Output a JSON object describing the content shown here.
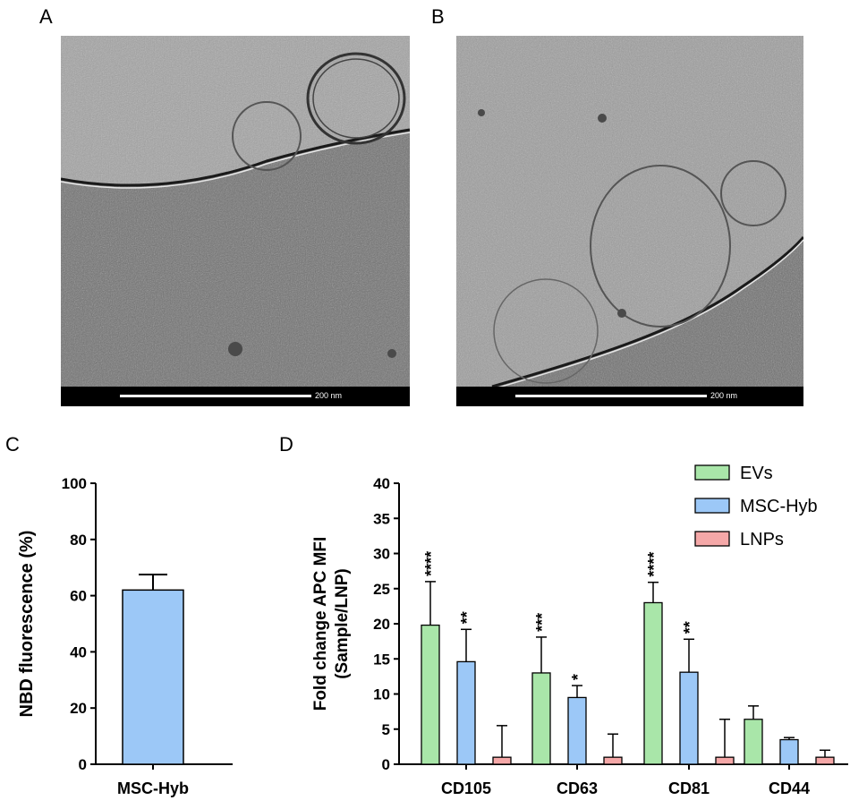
{
  "panels": {
    "a": {
      "letter": "A",
      "scalebar_label": "200 nm"
    },
    "b": {
      "letter": "B",
      "scalebar_label": "200 nm"
    },
    "c": {
      "letter": "C"
    },
    "d": {
      "letter": "D"
    }
  },
  "colors": {
    "evs": "#a9e6a9",
    "msc_hyb": "#9cc8f7",
    "lnps": "#f5a8a8",
    "micrograph_bg": "#8c8c8c"
  },
  "chart_data": [
    {
      "type": "bar",
      "panel": "C",
      "categories": [
        "MSC-Hyb"
      ],
      "values": [
        62
      ],
      "errors": [
        5.5
      ],
      "ylabel": "NBD fluorescence (%)",
      "xlabel": "",
      "ylim": [
        0,
        100
      ],
      "yticks": [
        "0",
        "20",
        "40",
        "60",
        "80",
        "100"
      ],
      "grid": false
    },
    {
      "type": "bar",
      "panel": "D",
      "categories": [
        "CD105",
        "CD63",
        "CD81",
        "CD44"
      ],
      "ylabel_line1": "Fold change APC MFI",
      "ylabel_line2": "(Sample/LNP)",
      "ylim": [
        0,
        40
      ],
      "yticks": [
        "0",
        "5",
        "10",
        "15",
        "20",
        "25",
        "30",
        "35",
        "40"
      ],
      "legend_position": "top-right",
      "grid": false,
      "series": [
        {
          "name": "EVs",
          "values": [
            19.8,
            13.0,
            23.0,
            6.4
          ],
          "errors": [
            6.2,
            5.1,
            2.9,
            1.9
          ],
          "significance": [
            "****",
            "***",
            "****",
            ""
          ]
        },
        {
          "name": "MSC-Hyb",
          "values": [
            14.6,
            9.5,
            13.1,
            3.5
          ],
          "errors": [
            4.6,
            1.7,
            4.7,
            0.3
          ],
          "significance": [
            "**",
            "*",
            "**",
            ""
          ]
        },
        {
          "name": "LNPs",
          "values": [
            1.0,
            1.0,
            1.0,
            1.0
          ],
          "errors": [
            4.5,
            3.3,
            5.4,
            1.0
          ],
          "significance": [
            "",
            "",
            "",
            ""
          ]
        }
      ]
    }
  ]
}
